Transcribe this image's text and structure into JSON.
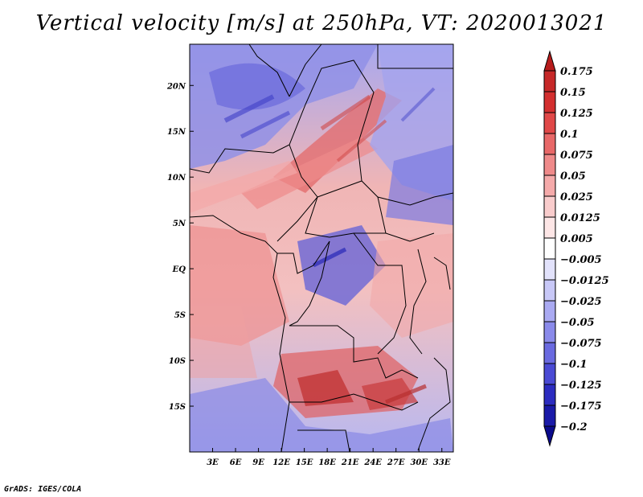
{
  "title": "Vertical velocity [m/s] at 250hPa, VT: 2020013021",
  "credit": "GrADS: IGES/COLA",
  "map": {
    "lat_labels": [
      {
        "lat": 20,
        "label": "20N"
      },
      {
        "lat": 15,
        "label": "15N"
      },
      {
        "lat": 10,
        "label": "10N"
      },
      {
        "lat": 5,
        "label": "5N"
      },
      {
        "lat": 0,
        "label": "EQ"
      },
      {
        "lat": -5,
        "label": "5S"
      },
      {
        "lat": -10,
        "label": "10S"
      },
      {
        "lat": -15,
        "label": "15S"
      }
    ],
    "lon_labels": [
      {
        "lon": 3,
        "label": "3E"
      },
      {
        "lon": 6,
        "label": "6E"
      },
      {
        "lon": 9,
        "label": "9E"
      },
      {
        "lon": 12,
        "label": "12E"
      },
      {
        "lon": 15,
        "label": "15E"
      },
      {
        "lon": 18,
        "label": "18E"
      },
      {
        "lon": 21,
        "label": "21E"
      },
      {
        "lon": 24,
        "label": "24E"
      },
      {
        "lon": 27,
        "label": "27E"
      },
      {
        "lon": 30,
        "label": "30E"
      },
      {
        "lon": 33,
        "label": "33E"
      }
    ],
    "lat_range": [
      -20,
      24.5
    ],
    "lon_range": [
      0,
      34.5
    ],
    "field": "vertical velocity",
    "units": "m/s"
  },
  "colorbar": {
    "labels": [
      "0.175",
      "0.15",
      "0.125",
      "0.1",
      "0.075",
      "0.05",
      "0.025",
      "0.0125",
      "0.005",
      "−0.005",
      "−0.0125",
      "−0.025",
      "−0.05",
      "−0.075",
      "−0.1",
      "−0.125",
      "−0.175",
      "−0.2"
    ],
    "colors": [
      "#b71c1c",
      "#c62828",
      "#d32f2f",
      "#e04848",
      "#e86868",
      "#ef8a8a",
      "#f5aaaa",
      "#f9cccc",
      "#fde6e6",
      "#ffffff",
      "#e2e2fb",
      "#c8c8f7",
      "#aaaaf2",
      "#8a8aea",
      "#6a6ae0",
      "#4a4ad4",
      "#2c2cc0",
      "#1a1aa8",
      "#0a0a8c"
    ]
  }
}
